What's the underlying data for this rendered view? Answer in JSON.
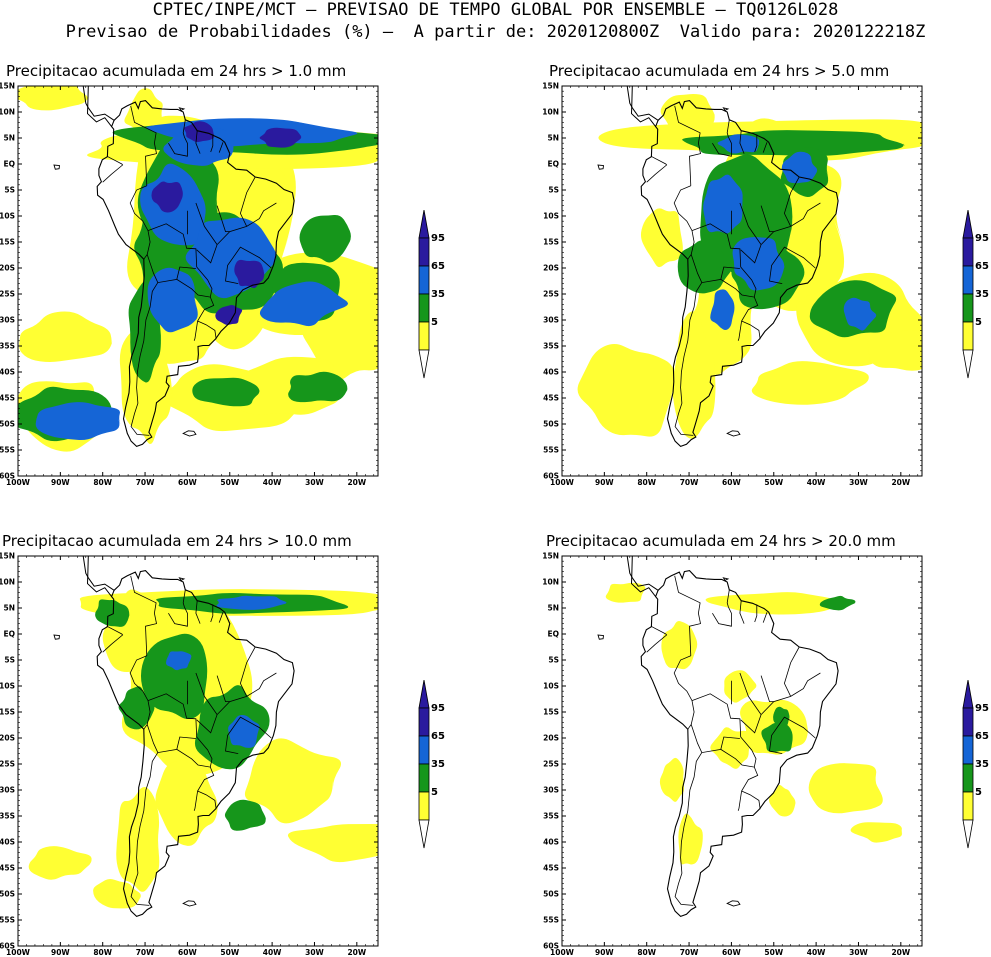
{
  "header": {
    "line1": "CPTEC/INPE/MCT – PREVISAO DE TEMPO GLOBAL POR ENSEMBLE – TQ0126L028",
    "line2": "Previsao de Probabilidades (%) –  A partir de: 2020120800Z  Valido para: 2020122218Z"
  },
  "colors": {
    "c5": "#ffff33",
    "c35": "#16961b",
    "c65": "#1565d6",
    "c95": "#2a1a9e",
    "land": "#ffffff",
    "border": "#000000"
  },
  "axes": {
    "lat_labels": [
      "15N",
      "10N",
      "5N",
      "EQ",
      "5S",
      "10S",
      "15S",
      "20S",
      "25S",
      "30S",
      "35S",
      "40S",
      "45S",
      "50S",
      "55S",
      "60S"
    ],
    "lon_labels": [
      "100W",
      "90W",
      "80W",
      "70W",
      "60W",
      "50W",
      "40W",
      "30W",
      "20W"
    ],
    "lon_range": [
      -100,
      -15
    ],
    "lat_range": [
      15,
      -60
    ]
  },
  "legend": {
    "labels": [
      "95",
      "65",
      "35",
      "5"
    ]
  },
  "panels": [
    {
      "title": "Precipitacao acumulada em 24 hrs > 1.0 mm",
      "threshold_mm": 1.0
    },
    {
      "title": "Precipitacao acumulada em 24 hrs > 5.0 mm",
      "threshold_mm": 5.0
    },
    {
      "title": "Precipitacao acumulada em 24 hrs > 10.0 mm",
      "threshold_mm": 10.0
    },
    {
      "title": "Precipitacao acumulada em 24 hrs > 20.0 mm",
      "threshold_mm": 20.0
    }
  ]
}
